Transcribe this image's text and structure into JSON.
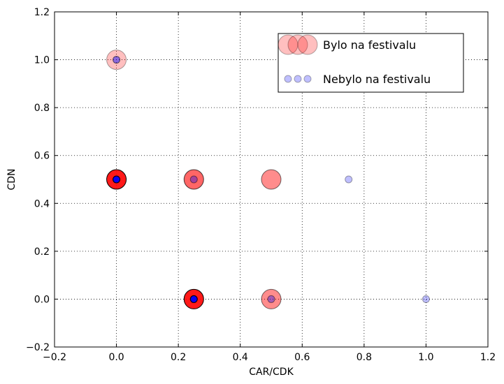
{
  "chart_data": {
    "type": "scatter",
    "title": "",
    "xlabel": "CAR/CDK",
    "ylabel": "CDN",
    "xlim": [
      -0.2,
      1.2
    ],
    "ylim": [
      -0.2,
      1.2
    ],
    "xticks": [
      -0.2,
      0.0,
      0.2,
      0.4,
      0.6,
      0.8,
      1.0,
      1.2
    ],
    "yticks": [
      -0.2,
      0.0,
      0.2,
      0.4,
      0.6,
      0.8,
      1.0,
      1.2
    ],
    "xtick_labels": [
      "−0.2",
      "0.0",
      "0.2",
      "0.4",
      "0.6",
      "0.8",
      "1.0",
      "1.2"
    ],
    "ytick_labels": [
      "−0.2",
      "0.0",
      "0.2",
      "0.4",
      "0.6",
      "0.8",
      "1.0",
      "1.2"
    ],
    "grid": true,
    "grid_style": "dotted",
    "legend_position": "top-right",
    "series": [
      {
        "name": "Bylo na festivalu",
        "color": "#ff0000",
        "points": [
          {
            "x": 0.0,
            "y": 1.0,
            "alpha": 0.25
          },
          {
            "x": 0.0,
            "y": 0.5,
            "alpha": 0.9
          },
          {
            "x": 0.25,
            "y": 0.5,
            "alpha": 0.6
          },
          {
            "x": 0.5,
            "y": 0.5,
            "alpha": 0.45
          },
          {
            "x": 0.25,
            "y": 0.0,
            "alpha": 0.9
          },
          {
            "x": 0.5,
            "y": 0.0,
            "alpha": 0.45
          }
        ]
      },
      {
        "name": "Nebylo na festivalu",
        "color": "#0000ff",
        "points": [
          {
            "x": 0.0,
            "y": 1.0,
            "alpha": 0.45
          },
          {
            "x": 0.0,
            "y": 0.5,
            "alpha": 0.95
          },
          {
            "x": 0.25,
            "y": 0.5,
            "alpha": 0.35
          },
          {
            "x": 0.75,
            "y": 0.5,
            "alpha": 0.25
          },
          {
            "x": 0.25,
            "y": 0.0,
            "alpha": 0.95
          },
          {
            "x": 0.5,
            "y": 0.0,
            "alpha": 0.35
          },
          {
            "x": 1.0,
            "y": 0.0,
            "alpha": 0.25
          }
        ]
      }
    ]
  }
}
